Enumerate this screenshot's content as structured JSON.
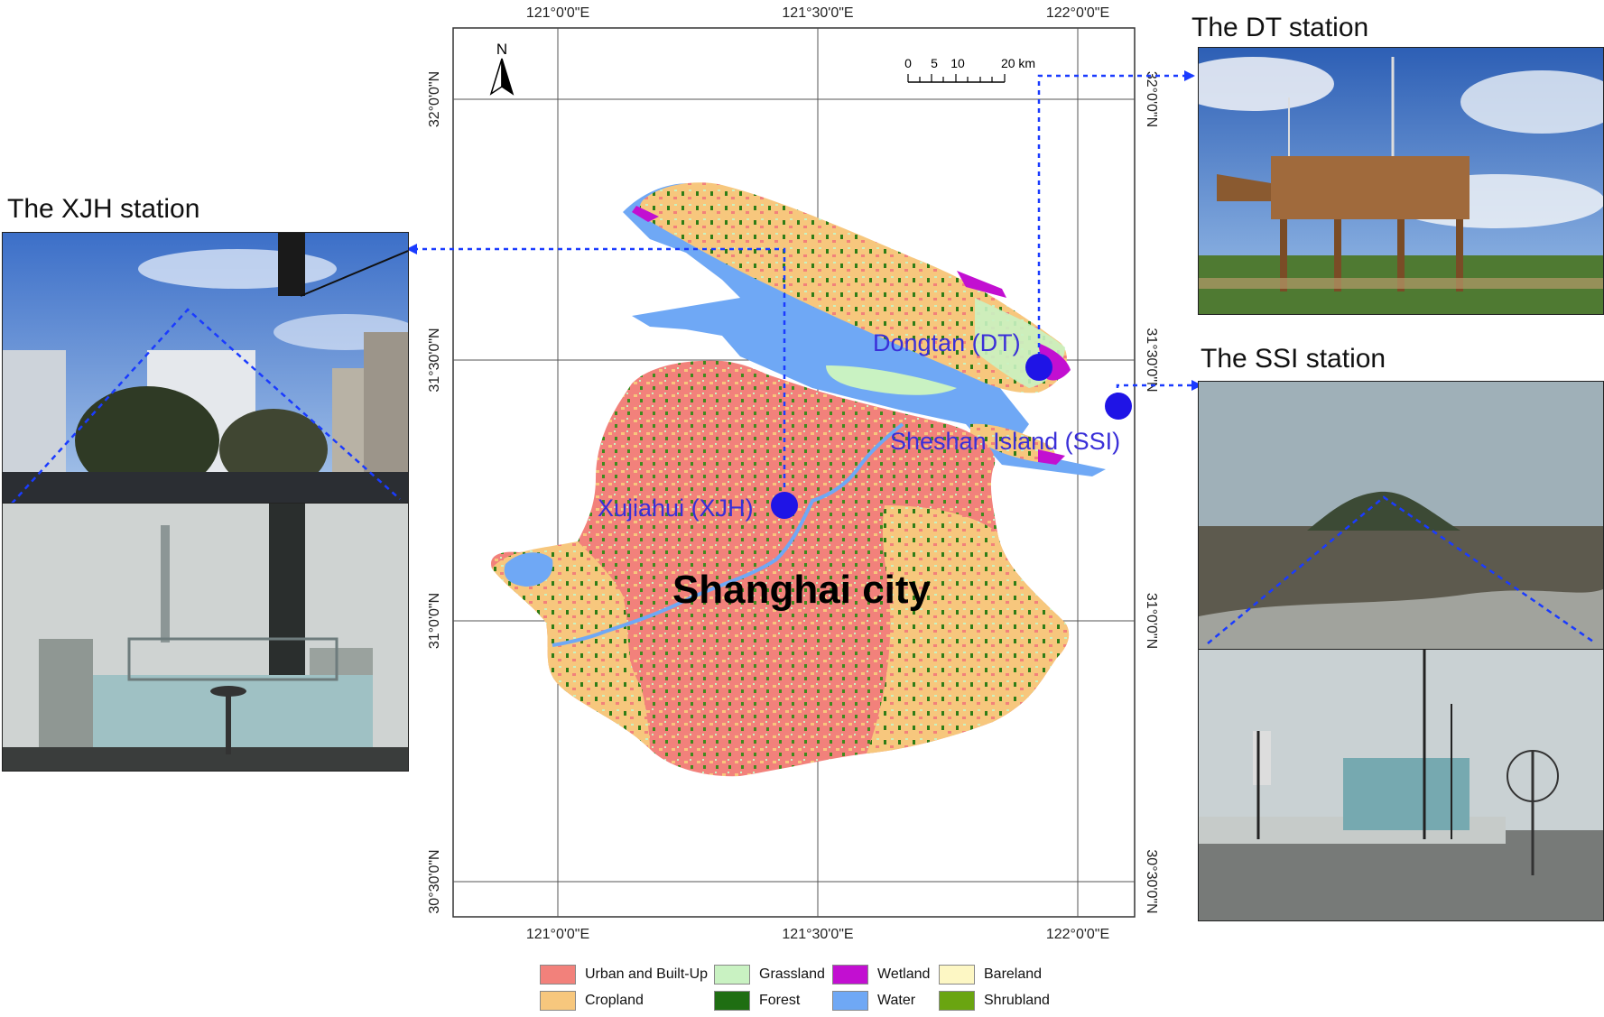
{
  "map": {
    "city_label": "Shanghai city",
    "north_label": "N",
    "scale_labels": [
      "0",
      "5",
      "10",
      "20 km"
    ],
    "lon_ticks": [
      "121°0'0\"E",
      "121°30'0\"E",
      "122°0'0\"E"
    ],
    "lat_ticks": [
      "32°0'0\"N",
      "31°30'0\"N",
      "31°0'0\"N",
      "30°30'0\"N"
    ],
    "sites": {
      "xjh": "Xujiahui (XJH)",
      "dt": "Dongtan (DT)",
      "ssi": "Sheshan Island (SSI)"
    },
    "marker_color": "#1f14e6",
    "site_label_color": "#3a2fd8",
    "arrow_color": "#1a3bff"
  },
  "stations": {
    "xjh_title": "The XJH station",
    "dt_title": "The DT station",
    "ssi_title": "The SSI station"
  },
  "legend": [
    {
      "label": "Urban and Built-Up",
      "color": "#f2817b"
    },
    {
      "label": "Cropland",
      "color": "#f7c77d"
    },
    {
      "label": "Grassland",
      "color": "#c9f2c2"
    },
    {
      "label": "Forest",
      "color": "#1f6e12"
    },
    {
      "label": "Wetland",
      "color": "#c20fd1"
    },
    {
      "label": "Water",
      "color": "#6fa8f5"
    },
    {
      "label": "Bareland",
      "color": "#fdf7c4"
    },
    {
      "label": "Shrubland",
      "color": "#6aa511"
    }
  ]
}
